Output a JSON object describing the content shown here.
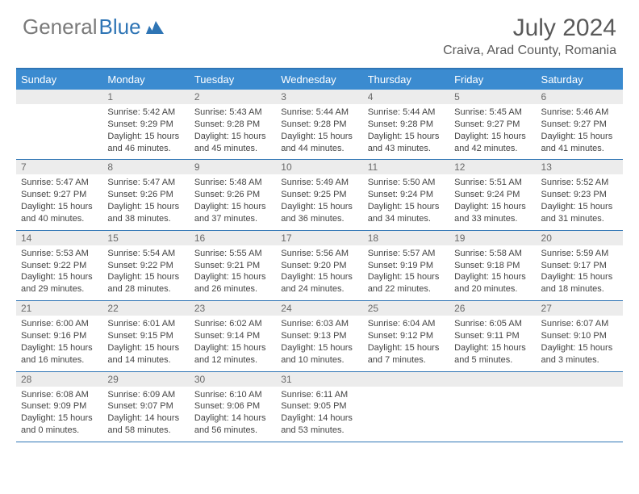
{
  "brand": {
    "general": "General",
    "blue": "Blue"
  },
  "title": "July 2024",
  "location": "Craiva, Arad County, Romania",
  "colors": {
    "header_bg": "#3b8bd0",
    "border": "#2f75b5",
    "daynum_bg": "#ececec",
    "text_muted": "#6a6a6a",
    "text_body": "#444444",
    "title_color": "#595959"
  },
  "day_headers": [
    "Sunday",
    "Monday",
    "Tuesday",
    "Wednesday",
    "Thursday",
    "Friday",
    "Saturday"
  ],
  "weeks": [
    [
      {
        "n": "",
        "sr": "",
        "ss": "",
        "dl": ""
      },
      {
        "n": "1",
        "sr": "Sunrise: 5:42 AM",
        "ss": "Sunset: 9:29 PM",
        "dl": "Daylight: 15 hours and 46 minutes."
      },
      {
        "n": "2",
        "sr": "Sunrise: 5:43 AM",
        "ss": "Sunset: 9:28 PM",
        "dl": "Daylight: 15 hours and 45 minutes."
      },
      {
        "n": "3",
        "sr": "Sunrise: 5:44 AM",
        "ss": "Sunset: 9:28 PM",
        "dl": "Daylight: 15 hours and 44 minutes."
      },
      {
        "n": "4",
        "sr": "Sunrise: 5:44 AM",
        "ss": "Sunset: 9:28 PM",
        "dl": "Daylight: 15 hours and 43 minutes."
      },
      {
        "n": "5",
        "sr": "Sunrise: 5:45 AM",
        "ss": "Sunset: 9:27 PM",
        "dl": "Daylight: 15 hours and 42 minutes."
      },
      {
        "n": "6",
        "sr": "Sunrise: 5:46 AM",
        "ss": "Sunset: 9:27 PM",
        "dl": "Daylight: 15 hours and 41 minutes."
      }
    ],
    [
      {
        "n": "7",
        "sr": "Sunrise: 5:47 AM",
        "ss": "Sunset: 9:27 PM",
        "dl": "Daylight: 15 hours and 40 minutes."
      },
      {
        "n": "8",
        "sr": "Sunrise: 5:47 AM",
        "ss": "Sunset: 9:26 PM",
        "dl": "Daylight: 15 hours and 38 minutes."
      },
      {
        "n": "9",
        "sr": "Sunrise: 5:48 AM",
        "ss": "Sunset: 9:26 PM",
        "dl": "Daylight: 15 hours and 37 minutes."
      },
      {
        "n": "10",
        "sr": "Sunrise: 5:49 AM",
        "ss": "Sunset: 9:25 PM",
        "dl": "Daylight: 15 hours and 36 minutes."
      },
      {
        "n": "11",
        "sr": "Sunrise: 5:50 AM",
        "ss": "Sunset: 9:24 PM",
        "dl": "Daylight: 15 hours and 34 minutes."
      },
      {
        "n": "12",
        "sr": "Sunrise: 5:51 AM",
        "ss": "Sunset: 9:24 PM",
        "dl": "Daylight: 15 hours and 33 minutes."
      },
      {
        "n": "13",
        "sr": "Sunrise: 5:52 AM",
        "ss": "Sunset: 9:23 PM",
        "dl": "Daylight: 15 hours and 31 minutes."
      }
    ],
    [
      {
        "n": "14",
        "sr": "Sunrise: 5:53 AM",
        "ss": "Sunset: 9:22 PM",
        "dl": "Daylight: 15 hours and 29 minutes."
      },
      {
        "n": "15",
        "sr": "Sunrise: 5:54 AM",
        "ss": "Sunset: 9:22 PM",
        "dl": "Daylight: 15 hours and 28 minutes."
      },
      {
        "n": "16",
        "sr": "Sunrise: 5:55 AM",
        "ss": "Sunset: 9:21 PM",
        "dl": "Daylight: 15 hours and 26 minutes."
      },
      {
        "n": "17",
        "sr": "Sunrise: 5:56 AM",
        "ss": "Sunset: 9:20 PM",
        "dl": "Daylight: 15 hours and 24 minutes."
      },
      {
        "n": "18",
        "sr": "Sunrise: 5:57 AM",
        "ss": "Sunset: 9:19 PM",
        "dl": "Daylight: 15 hours and 22 minutes."
      },
      {
        "n": "19",
        "sr": "Sunrise: 5:58 AM",
        "ss": "Sunset: 9:18 PM",
        "dl": "Daylight: 15 hours and 20 minutes."
      },
      {
        "n": "20",
        "sr": "Sunrise: 5:59 AM",
        "ss": "Sunset: 9:17 PM",
        "dl": "Daylight: 15 hours and 18 minutes."
      }
    ],
    [
      {
        "n": "21",
        "sr": "Sunrise: 6:00 AM",
        "ss": "Sunset: 9:16 PM",
        "dl": "Daylight: 15 hours and 16 minutes."
      },
      {
        "n": "22",
        "sr": "Sunrise: 6:01 AM",
        "ss": "Sunset: 9:15 PM",
        "dl": "Daylight: 15 hours and 14 minutes."
      },
      {
        "n": "23",
        "sr": "Sunrise: 6:02 AM",
        "ss": "Sunset: 9:14 PM",
        "dl": "Daylight: 15 hours and 12 minutes."
      },
      {
        "n": "24",
        "sr": "Sunrise: 6:03 AM",
        "ss": "Sunset: 9:13 PM",
        "dl": "Daylight: 15 hours and 10 minutes."
      },
      {
        "n": "25",
        "sr": "Sunrise: 6:04 AM",
        "ss": "Sunset: 9:12 PM",
        "dl": "Daylight: 15 hours and 7 minutes."
      },
      {
        "n": "26",
        "sr": "Sunrise: 6:05 AM",
        "ss": "Sunset: 9:11 PM",
        "dl": "Daylight: 15 hours and 5 minutes."
      },
      {
        "n": "27",
        "sr": "Sunrise: 6:07 AM",
        "ss": "Sunset: 9:10 PM",
        "dl": "Daylight: 15 hours and 3 minutes."
      }
    ],
    [
      {
        "n": "28",
        "sr": "Sunrise: 6:08 AM",
        "ss": "Sunset: 9:09 PM",
        "dl": "Daylight: 15 hours and 0 minutes."
      },
      {
        "n": "29",
        "sr": "Sunrise: 6:09 AM",
        "ss": "Sunset: 9:07 PM",
        "dl": "Daylight: 14 hours and 58 minutes."
      },
      {
        "n": "30",
        "sr": "Sunrise: 6:10 AM",
        "ss": "Sunset: 9:06 PM",
        "dl": "Daylight: 14 hours and 56 minutes."
      },
      {
        "n": "31",
        "sr": "Sunrise: 6:11 AM",
        "ss": "Sunset: 9:05 PM",
        "dl": "Daylight: 14 hours and 53 minutes."
      },
      {
        "n": "",
        "sr": "",
        "ss": "",
        "dl": ""
      },
      {
        "n": "",
        "sr": "",
        "ss": "",
        "dl": ""
      },
      {
        "n": "",
        "sr": "",
        "ss": "",
        "dl": ""
      }
    ]
  ]
}
